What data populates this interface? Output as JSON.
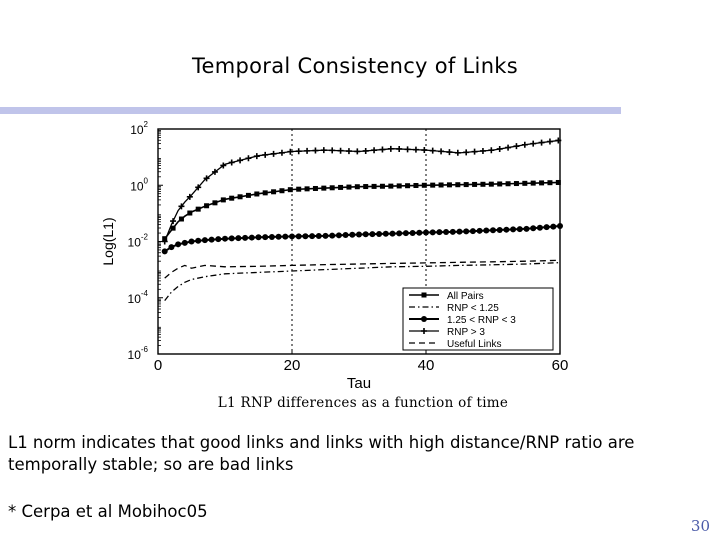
{
  "slide": {
    "title": "Temporal Consistency of Links",
    "body_text": "L1 norm indicates that good links and links with high distance/RNP ratio are temporally stable; so are bad links",
    "footnote": "* Cerpa et al Mobihoc05",
    "page_number": "30",
    "title_rule_color": "#c0c4ea",
    "page_number_color": "#4a5aa8"
  },
  "chart_data": {
    "type": "line",
    "title": "",
    "caption": "L1 RNP differences as a function of time",
    "xlabel": "Tau",
    "ylabel": "Log(L1)",
    "xlim": [
      0,
      60
    ],
    "ylim_log10": [
      -6,
      2
    ],
    "y_scale": "log",
    "x_ticks": [
      "0",
      "20",
      "40",
      "60"
    ],
    "y_ticks": [
      {
        "base": "10",
        "exp": "2",
        "log10": 2
      },
      {
        "base": "10",
        "exp": "0",
        "log10": 0
      },
      {
        "base": "10",
        "exp": "-2",
        "log10": -2
      },
      {
        "base": "10",
        "exp": "-4",
        "log10": -4
      },
      {
        "base": "10",
        "exp": "-6",
        "log10": -6
      }
    ],
    "grid": "dashed at x=20, x=40",
    "legend_position": "bottom-right",
    "x": [
      1,
      2,
      3,
      4,
      5,
      7,
      10,
      15,
      20,
      25,
      30,
      35,
      40,
      45,
      50,
      55,
      60
    ],
    "series": [
      {
        "name": "All Pairs",
        "style": "square-markers",
        "log10_values": [
          -1.9,
          -1.6,
          -1.3,
          -1.1,
          -0.95,
          -0.75,
          -0.5,
          -0.3,
          -0.15,
          -0.1,
          -0.05,
          -0.03,
          0.0,
          0.02,
          0.04,
          0.07,
          0.1
        ]
      },
      {
        "name": "RNP < 1.25",
        "style": "dash-dot",
        "log10_values": [
          -4.1,
          -3.8,
          -3.6,
          -3.45,
          -3.35,
          -3.25,
          -3.15,
          -3.1,
          -3.05,
          -3.0,
          -2.95,
          -2.9,
          -2.88,
          -2.85,
          -2.83,
          -2.8,
          -2.75
        ]
      },
      {
        "name": "1.25 < RNP < 3",
        "style": "circle-markers",
        "log10_values": [
          -2.35,
          -2.2,
          -2.1,
          -2.05,
          -2.0,
          -1.95,
          -1.9,
          -1.85,
          -1.82,
          -1.8,
          -1.75,
          -1.72,
          -1.68,
          -1.65,
          -1.6,
          -1.55,
          -1.45
        ]
      },
      {
        "name": "RNP > 3",
        "style": "plus-markers",
        "log10_values": [
          -2.0,
          -1.4,
          -0.9,
          -0.6,
          -0.35,
          0.2,
          0.75,
          1.05,
          1.2,
          1.25,
          1.2,
          1.3,
          1.25,
          1.15,
          1.25,
          1.45,
          1.6
        ]
      },
      {
        "name": "Useful Links",
        "style": "dashed",
        "log10_values": [
          -3.3,
          -3.1,
          -2.95,
          -2.85,
          -2.95,
          -2.85,
          -2.9,
          -2.88,
          -2.85,
          -2.82,
          -2.8,
          -2.78,
          -2.76,
          -2.74,
          -2.72,
          -2.7,
          -2.67
        ]
      }
    ]
  }
}
